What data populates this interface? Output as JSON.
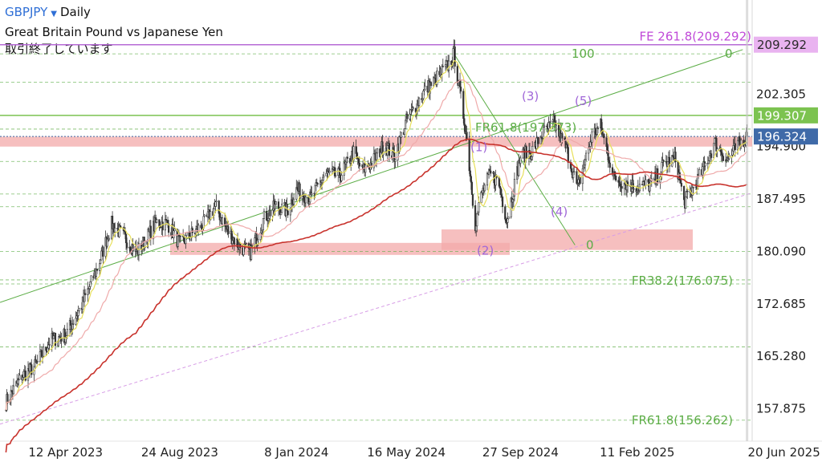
{
  "header": {
    "symbol": "GBPJPY",
    "dropdown_icon": "triangle-down-icon",
    "interval": "Daily",
    "name": "Great Britain Pound vs Japanese Yen",
    "status": "取引終了しています"
  },
  "chart_data": {
    "type": "candlestick",
    "x_ticks": [
      "12 Apr 2023",
      "24 Aug 2023",
      "8 Jan 2024",
      "16 May 2024",
      "27 Sep 2024",
      "11 Feb 2025",
      "20 Jun 2025"
    ],
    "y_ticks": [
      "202.305",
      "194.900",
      "187.495",
      "180.090",
      "172.685",
      "165.280",
      "157.875"
    ],
    "ylim": [
      153.3,
      215.6
    ],
    "price_badges": [
      {
        "value": "209.292",
        "color": "#e9b3f0",
        "text_color": "#2b2b2b"
      },
      {
        "value": "199.307",
        "color": "#7cc350",
        "text_color": "#ffffff"
      },
      {
        "value": "196.324",
        "color": "#3f6aa8",
        "text_color": "#ffffff"
      }
    ],
    "anchors": [
      {
        "d": "2023-02-01",
        "c": 158.8
      },
      {
        "d": "2023-02-20",
        "c": 162.5
      },
      {
        "d": "2023-03-08",
        "c": 164.0
      },
      {
        "d": "2023-03-25",
        "c": 167.5
      },
      {
        "d": "2023-04-12",
        "c": 168.3
      },
      {
        "d": "2023-05-01",
        "c": 172.5
      },
      {
        "d": "2023-05-20",
        "c": 178.0
      },
      {
        "d": "2023-06-05",
        "c": 184.0
      },
      {
        "d": "2023-06-22",
        "c": 181.8
      },
      {
        "d": "2023-07-05",
        "c": 180.0
      },
      {
        "d": "2023-07-28",
        "c": 184.2
      },
      {
        "d": "2023-08-10",
        "c": 184.0
      },
      {
        "d": "2023-08-24",
        "c": 181.2
      },
      {
        "d": "2023-09-05",
        "c": 182.3
      },
      {
        "d": "2023-09-20",
        "c": 183.8
      },
      {
        "d": "2023-10-05",
        "c": 186.5
      },
      {
        "d": "2023-10-18",
        "c": 183.2
      },
      {
        "d": "2023-11-02",
        "c": 180.8
      },
      {
        "d": "2023-11-15",
        "c": 180.0
      },
      {
        "d": "2023-12-01",
        "c": 184.8
      },
      {
        "d": "2023-12-15",
        "c": 186.5
      },
      {
        "d": "2023-12-28",
        "c": 185.8
      },
      {
        "d": "2024-01-08",
        "c": 188.8
      },
      {
        "d": "2024-01-25",
        "c": 187.5
      },
      {
        "d": "2024-02-10",
        "c": 191.0
      },
      {
        "d": "2024-02-28",
        "c": 190.8
      },
      {
        "d": "2024-03-15",
        "c": 194.0
      },
      {
        "d": "2024-03-25",
        "c": 191.5
      },
      {
        "d": "2024-04-05",
        "c": 192.5
      },
      {
        "d": "2024-04-20",
        "c": 195.2
      },
      {
        "d": "2024-05-02",
        "c": 193.5
      },
      {
        "d": "2024-05-16",
        "c": 198.5
      },
      {
        "d": "2024-06-05",
        "c": 202.5
      },
      {
        "d": "2024-06-20",
        "c": 204.5
      },
      {
        "d": "2024-07-05",
        "c": 206.5
      },
      {
        "d": "2024-07-11",
        "c": 208.0
      },
      {
        "d": "2024-07-25",
        "c": 197.0
      },
      {
        "d": "2024-08-05",
        "c": 184.0
      },
      {
        "d": "2024-08-12",
        "c": 188.0
      },
      {
        "d": "2024-08-22",
        "c": 191.0
      },
      {
        "d": "2024-09-01",
        "c": 190.0
      },
      {
        "d": "2024-09-11",
        "c": 184.5
      },
      {
        "d": "2024-09-27",
        "c": 193.5
      },
      {
        "d": "2024-10-10",
        "c": 194.2
      },
      {
        "d": "2024-10-25",
        "c": 197.0
      },
      {
        "d": "2024-11-05",
        "c": 198.2
      },
      {
        "d": "2024-11-20",
        "c": 194.5
      },
      {
        "d": "2024-12-03",
        "c": 189.0
      },
      {
        "d": "2024-12-20",
        "c": 196.5
      },
      {
        "d": "2024-12-30",
        "c": 197.8
      },
      {
        "d": "2025-01-15",
        "c": 190.5
      },
      {
        "d": "2025-02-01",
        "c": 189.5
      },
      {
        "d": "2025-02-11",
        "c": 189.3
      },
      {
        "d": "2025-02-28",
        "c": 189.5
      },
      {
        "d": "2025-03-15",
        "c": 192.5
      },
      {
        "d": "2025-03-28",
        "c": 193.2
      },
      {
        "d": "2025-04-07",
        "c": 187.0
      },
      {
        "d": "2025-04-18",
        "c": 189.0
      },
      {
        "d": "2025-05-01",
        "c": 192.0
      },
      {
        "d": "2025-05-13",
        "c": 195.5
      },
      {
        "d": "2025-05-28",
        "c": 193.0
      },
      {
        "d": "2025-06-10",
        "c": 195.2
      },
      {
        "d": "2025-06-20",
        "c": 196.3
      }
    ],
    "annotations": [
      {
        "text": "FE 261.8(209.292)",
        "price": 209.292,
        "color": "#c04ad8"
      },
      {
        "text": "FR61.8(197.373)",
        "price": 197.373,
        "color": "#5cad46"
      },
      {
        "text": "FR38.2(176.075)",
        "price": 176.075,
        "color": "#5cad46"
      },
      {
        "text": "FR61.8(156.262)",
        "price": 156.262,
        "color": "#5cad46"
      },
      {
        "text": "100",
        "color": "#5cad46"
      },
      {
        "text": "0",
        "color": "#5cad46"
      },
      {
        "text": "0",
        "color": "#5cad46"
      },
      {
        "text": "(1)",
        "color": "#a067d8"
      },
      {
        "text": "(2)",
        "color": "#a067d8"
      },
      {
        "text": "(3)",
        "color": "#a067d8"
      },
      {
        "text": "(4)",
        "color": "#a067d8"
      },
      {
        "text": "(5)",
        "color": "#a067d8"
      }
    ],
    "zones": [
      {
        "from": 194.9,
        "to": 196.3,
        "color": "#f3a9a9"
      },
      {
        "from": 179.6,
        "to": 181.3,
        "color": "#f3a9a9"
      },
      {
        "from": 180.3,
        "to": 183.2,
        "color": "#f3a9a9"
      }
    ],
    "moving_averages": [
      {
        "period": 10,
        "color": "#e8e05a"
      },
      {
        "period": 40,
        "color": "#efaaaa"
      },
      {
        "period": 110,
        "color": "#c8322c"
      }
    ],
    "colors": {
      "candle": "#333333",
      "grid_green": "#5cad46",
      "wave_purple": "#c04ad8",
      "zone": "#f3a9a9"
    }
  }
}
